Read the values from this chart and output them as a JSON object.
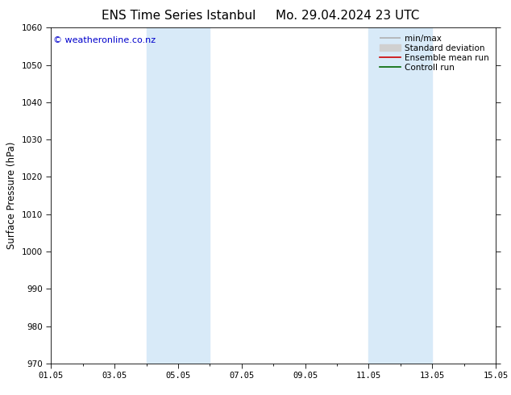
{
  "title_left": "ENS Time Series Istanbul",
  "title_right": "Mo. 29.04.2024 23 UTC",
  "ylabel": "Surface Pressure (hPa)",
  "ylim": [
    970,
    1060
  ],
  "yticks": [
    970,
    980,
    990,
    1000,
    1010,
    1020,
    1030,
    1040,
    1050,
    1060
  ],
  "xlim": [
    0,
    14
  ],
  "xtick_positions": [
    0,
    2,
    4,
    6,
    8,
    10,
    12,
    14
  ],
  "xtick_labels": [
    "01.05",
    "03.05",
    "05.05",
    "07.05",
    "09.05",
    "11.05",
    "13.05",
    "15.05"
  ],
  "shaded_bands": [
    {
      "xmin": 3.0,
      "xmax": 5.0
    },
    {
      "xmin": 10.0,
      "xmax": 12.0
    }
  ],
  "band_color": "#d8eaf8",
  "watermark": "© weatheronline.co.nz",
  "watermark_color": "#0000cc",
  "bg_color": "#ffffff",
  "legend_items": [
    {
      "label": "min/max",
      "color": "#b0b0b0",
      "lw": 1.2
    },
    {
      "label": "Standard deviation",
      "color": "#d0d0d0",
      "lw": 6
    },
    {
      "label": "Ensemble mean run",
      "color": "#cc0000",
      "lw": 1.2
    },
    {
      "label": "Controll run",
      "color": "#006600",
      "lw": 1.2
    }
  ],
  "title_fontsize": 11,
  "axis_fontsize": 8.5,
  "tick_fontsize": 7.5,
  "legend_fontsize": 7.5,
  "watermark_fontsize": 8
}
